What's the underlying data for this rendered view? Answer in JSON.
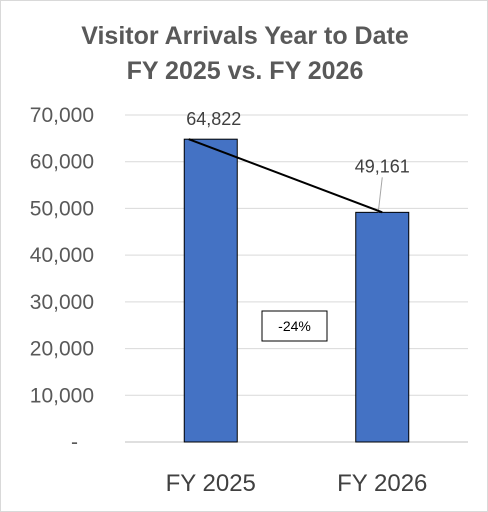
{
  "chart_data": {
    "type": "bar",
    "title_line1": "Visitor Arrivals Year to Date",
    "title_line2": "FY 2025 vs. FY 2026",
    "categories": [
      "FY 2025",
      "FY 2026"
    ],
    "values": [
      64822,
      49161
    ],
    "data_labels": [
      "64,822",
      "49,161"
    ],
    "y_ticks": [
      "-",
      "10,000",
      "20,000",
      "30,000",
      "40,000",
      "50,000",
      "60,000",
      "70,000"
    ],
    "ylim": [
      0,
      70000
    ],
    "grid": true,
    "bar_color": "#4472c4",
    "annotation": "-24%",
    "trend_line": true
  }
}
